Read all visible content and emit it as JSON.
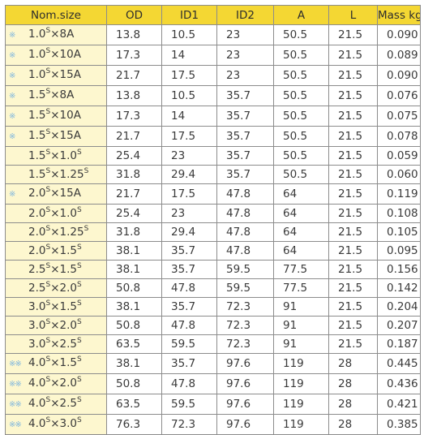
{
  "table": {
    "headers": [
      "Nom.size",
      "OD",
      "ID1",
      "ID2",
      "A",
      "L",
      "Mass kg"
    ],
    "rows": [
      {
        "mark": "※",
        "size_html": "1.0<sup>S</sup>×8A",
        "od": "13.8",
        "id1": "10.5",
        "id2": "23",
        "a": "50.5",
        "l": "21.5",
        "mass": "0.090"
      },
      {
        "mark": "※",
        "size_html": "1.0<sup>S</sup>×10A",
        "od": "17.3",
        "id1": "14",
        "id2": "23",
        "a": "50.5",
        "l": "21.5",
        "mass": "0.089"
      },
      {
        "mark": "※",
        "size_html": "1.0<sup>S</sup>×15A",
        "od": "21.7",
        "id1": "17.5",
        "id2": "23",
        "a": "50.5",
        "l": "21.5",
        "mass": "0.090"
      },
      {
        "mark": "※",
        "size_html": "1.5<sup>S</sup>×8A",
        "od": "13.8",
        "id1": "10.5",
        "id2": "35.7",
        "a": "50.5",
        "l": "21.5",
        "mass": "0.076"
      },
      {
        "mark": "※",
        "size_html": "1.5<sup>S</sup>×10A",
        "od": "17.3",
        "id1": "14",
        "id2": "35.7",
        "a": "50.5",
        "l": "21.5",
        "mass": "0.075"
      },
      {
        "mark": "※",
        "size_html": "1.5<sup>S</sup>×15A",
        "od": "21.7",
        "id1": "17.5",
        "id2": "35.7",
        "a": "50.5",
        "l": "21.5",
        "mass": "0.078"
      },
      {
        "mark": "",
        "size_html": "1.5<sup>S</sup>×1.0<sup>S</sup>",
        "od": "25.4",
        "id1": "23",
        "id2": "35.7",
        "a": "50.5",
        "l": "21.5",
        "mass": "0.059"
      },
      {
        "mark": "",
        "size_html": "1.5<sup>S</sup>×1.25<sup>S</sup>",
        "od": "31.8",
        "id1": "29.4",
        "id2": "35.7",
        "a": "50.5",
        "l": "21.5",
        "mass": "0.060"
      },
      {
        "mark": "※",
        "size_html": "2.0<sup>S</sup>×15A",
        "od": "21.7",
        "id1": "17.5",
        "id2": "47.8",
        "a": "64",
        "l": "21.5",
        "mass": "0.119"
      },
      {
        "mark": "",
        "size_html": "2.0<sup>S</sup>×1.0<sup>S</sup>",
        "od": "25.4",
        "id1": "23",
        "id2": "47.8",
        "a": "64",
        "l": "21.5",
        "mass": "0.108"
      },
      {
        "mark": "",
        "size_html": "2.0<sup>S</sup>×1.25<sup>S</sup>",
        "od": "31.8",
        "id1": "29.4",
        "id2": "47.8",
        "a": "64",
        "l": "21.5",
        "mass": "0.105"
      },
      {
        "mark": "",
        "size_html": "2.0<sup>S</sup>×1.5<sup>S</sup>",
        "od": "38.1",
        "id1": "35.7",
        "id2": "47.8",
        "a": "64",
        "l": "21.5",
        "mass": "0.095"
      },
      {
        "mark": "",
        "size_html": "2.5<sup>S</sup>×1.5<sup>S</sup>",
        "od": "38.1",
        "id1": "35.7",
        "id2": "59.5",
        "a": "77.5",
        "l": "21.5",
        "mass": "0.156"
      },
      {
        "mark": "",
        "size_html": "2.5<sup>S</sup>×2.0<sup>S</sup>",
        "od": "50.8",
        "id1": "47.8",
        "id2": "59.5",
        "a": "77.5",
        "l": "21.5",
        "mass": "0.142"
      },
      {
        "mark": "",
        "size_html": "3.0<sup>S</sup>×1.5<sup>S</sup>",
        "od": "38.1",
        "id1": "35.7",
        "id2": "72.3",
        "a": "91",
        "l": "21.5",
        "mass": "0.204"
      },
      {
        "mark": "",
        "size_html": "3.0<sup>S</sup>×2.0<sup>S</sup>",
        "od": "50.8",
        "id1": "47.8",
        "id2": "72.3",
        "a": "91",
        "l": "21.5",
        "mass": "0.207"
      },
      {
        "mark": "",
        "size_html": "3.0<sup>S</sup>×2.5<sup>S</sup>",
        "od": "63.5",
        "id1": "59.5",
        "id2": "72.3",
        "a": "91",
        "l": "21.5",
        "mass": "0.187"
      },
      {
        "mark": "※※",
        "size_html": "4.0<sup>S</sup>×1.5<sup>S</sup>",
        "od": "38.1",
        "id1": "35.7",
        "id2": "97.6",
        "a": "119",
        "l": "28",
        "mass": "0.445"
      },
      {
        "mark": "※※",
        "size_html": "4.0<sup>S</sup>×2.0<sup>S</sup>",
        "od": "50.8",
        "id1": "47.8",
        "id2": "97.6",
        "a": "119",
        "l": "28",
        "mass": "0.436"
      },
      {
        "mark": "※※",
        "size_html": "4.0<sup>S</sup>×2.5<sup>S</sup>",
        "od": "63.5",
        "id1": "59.5",
        "id2": "97.6",
        "a": "119",
        "l": "28",
        "mass": "0.421"
      },
      {
        "mark": "※※",
        "size_html": "4.0<sup>S</sup>×3.0<sup>S</sup>",
        "od": "76.3",
        "id1": "72.3",
        "id2": "97.6",
        "a": "119",
        "l": "28",
        "mass": "0.385"
      }
    ]
  },
  "colors": {
    "header_bg": "#f4d733",
    "size_col_bg": "#fdf7cf",
    "mark": "#7fb6de",
    "border": "#8c8c8c"
  }
}
